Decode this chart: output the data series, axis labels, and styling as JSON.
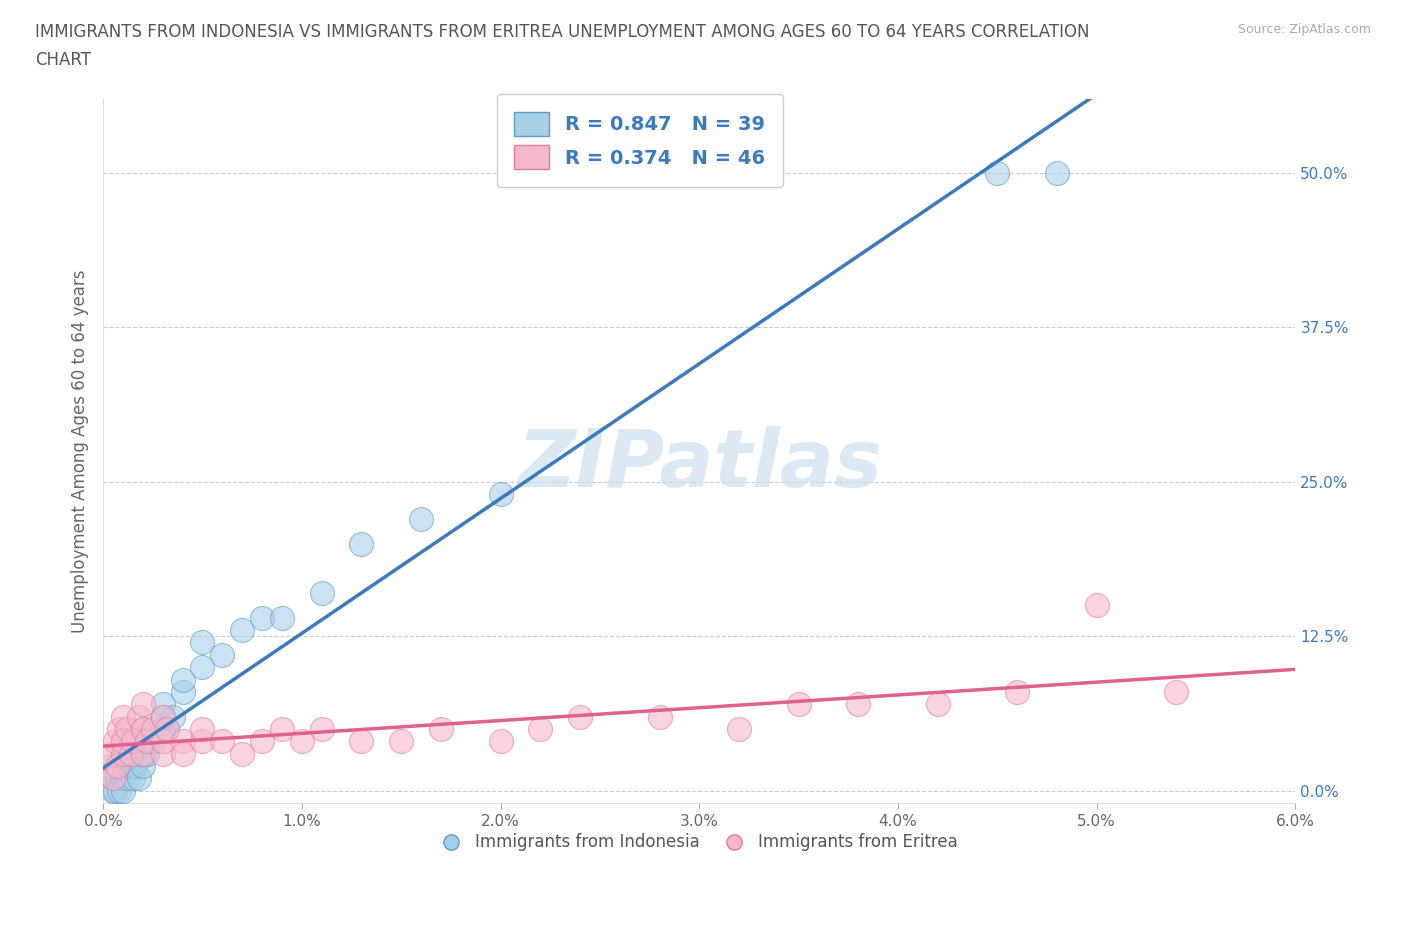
{
  "title_line1": "IMMIGRANTS FROM INDONESIA VS IMMIGRANTS FROM ERITREA UNEMPLOYMENT AMONG AGES 60 TO 64 YEARS CORRELATION",
  "title_line2": "CHART",
  "source": "Source: ZipAtlas.com",
  "ylabel": "Unemployment Among Ages 60 to 64 years",
  "xlabel_indonesia": "Immigrants from Indonesia",
  "xlabel_eritrea": "Immigrants from Eritrea",
  "xlim": [
    0.0,
    0.06
  ],
  "ylim": [
    -0.01,
    0.56
  ],
  "xticks": [
    0.0,
    0.01,
    0.02,
    0.03,
    0.04,
    0.05,
    0.06
  ],
  "xticklabels": [
    "0.0%",
    "1.0%",
    "2.0%",
    "3.0%",
    "4.0%",
    "5.0%",
    "6.0%"
  ],
  "yticks": [
    0.0,
    0.125,
    0.25,
    0.375,
    0.5
  ],
  "yticklabels": [
    "0.0%",
    "12.5%",
    "25.0%",
    "37.5%",
    "50.0%"
  ],
  "indonesia_R": 0.847,
  "indonesia_N": 39,
  "eritrea_R": 0.374,
  "eritrea_N": 46,
  "blue_color": "#a8cfe8",
  "pink_color": "#f5b8cc",
  "blue_edge_color": "#5b9ec9",
  "pink_edge_color": "#e87a9f",
  "blue_line_color": "#3a7bbf",
  "pink_line_color": "#e06090",
  "watermark_color": "#cce0f0",
  "indonesia_x": [
    0.0005,
    0.0005,
    0.0006,
    0.0007,
    0.0008,
    0.001,
    0.001,
    0.001,
    0.0012,
    0.0013,
    0.0015,
    0.0015,
    0.0016,
    0.0018,
    0.002,
    0.002,
    0.002,
    0.002,
    0.0022,
    0.0025,
    0.003,
    0.003,
    0.003,
    0.0032,
    0.0035,
    0.004,
    0.004,
    0.005,
    0.005,
    0.006,
    0.007,
    0.008,
    0.009,
    0.011,
    0.013,
    0.016,
    0.02,
    0.045,
    0.048
  ],
  "indonesia_y": [
    0.0,
    0.01,
    0.0,
    0.01,
    0.0,
    0.01,
    0.02,
    0.0,
    0.01,
    0.02,
    0.03,
    0.01,
    0.02,
    0.01,
    0.02,
    0.03,
    0.05,
    0.04,
    0.03,
    0.04,
    0.05,
    0.06,
    0.07,
    0.05,
    0.06,
    0.08,
    0.09,
    0.1,
    0.12,
    0.11,
    0.13,
    0.14,
    0.14,
    0.16,
    0.2,
    0.22,
    0.24,
    0.5,
    0.5
  ],
  "eritrea_x": [
    0.0003,
    0.0004,
    0.0005,
    0.0006,
    0.0007,
    0.0008,
    0.001,
    0.001,
    0.001,
    0.0012,
    0.0014,
    0.0015,
    0.0018,
    0.002,
    0.002,
    0.002,
    0.0022,
    0.0025,
    0.003,
    0.003,
    0.003,
    0.0032,
    0.004,
    0.004,
    0.005,
    0.005,
    0.006,
    0.007,
    0.008,
    0.009,
    0.01,
    0.011,
    0.013,
    0.015,
    0.017,
    0.02,
    0.022,
    0.024,
    0.028,
    0.032,
    0.035,
    0.038,
    0.042,
    0.046,
    0.05,
    0.054
  ],
  "eritrea_y": [
    0.02,
    0.03,
    0.01,
    0.04,
    0.02,
    0.05,
    0.03,
    0.06,
    0.04,
    0.05,
    0.03,
    0.04,
    0.06,
    0.05,
    0.07,
    0.03,
    0.04,
    0.05,
    0.03,
    0.04,
    0.06,
    0.05,
    0.04,
    0.03,
    0.04,
    0.05,
    0.04,
    0.03,
    0.04,
    0.05,
    0.04,
    0.05,
    0.04,
    0.04,
    0.05,
    0.04,
    0.05,
    0.06,
    0.06,
    0.05,
    0.07,
    0.07,
    0.07,
    0.08,
    0.15,
    0.08
  ],
  "watermark": "ZIPatlas",
  "background_color": "#ffffff",
  "grid_color": "#cccccc"
}
